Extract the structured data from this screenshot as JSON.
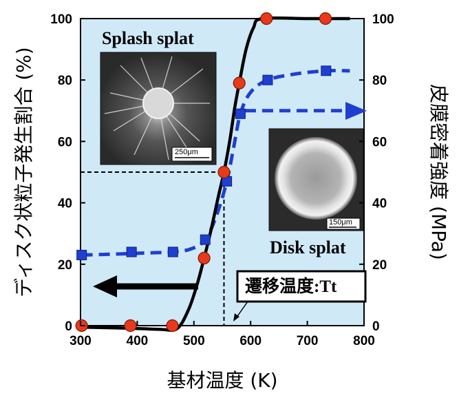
{
  "chart_data": {
    "type": "line",
    "xlabel": "基材温度 (K)",
    "ylabel_left": "ディスク状粒子発生割合 (%)",
    "ylabel_right": "皮膜密着強度 (MPa)",
    "xlim": [
      300,
      800
    ],
    "ylim_left": [
      0,
      100
    ],
    "ylim_right": [
      0,
      100
    ],
    "x_ticks": [
      "300",
      "400",
      "500",
      "600",
      "700",
      "800"
    ],
    "y_ticks_left": [
      "0",
      "20",
      "40",
      "60",
      "80",
      "100"
    ],
    "y_ticks_right": [
      "0",
      "20",
      "40",
      "60",
      "80",
      "100"
    ],
    "background": "#cfe9f7",
    "series": [
      {
        "axis": "left",
        "color": "#000000",
        "marker": "circle",
        "marker_color": "#e8391b",
        "points": [
          [
            302,
            0
          ],
          [
            388,
            0
          ],
          [
            462,
            0
          ],
          [
            518,
            22
          ],
          [
            553,
            50
          ],
          [
            580,
            79
          ],
          [
            628,
            100
          ],
          [
            732,
            100
          ]
        ],
        "curve": [
          [
            302,
            -0.5
          ],
          [
            380,
            -0.8
          ],
          [
            440,
            -1.2
          ],
          [
            470,
            -1.0
          ],
          [
            490,
            5
          ],
          [
            505,
            13
          ],
          [
            518,
            22
          ],
          [
            530,
            31
          ],
          [
            543,
            42
          ],
          [
            553,
            50
          ],
          [
            563,
            60
          ],
          [
            572,
            71
          ],
          [
            580,
            79
          ],
          [
            592,
            90
          ],
          [
            605,
            97
          ],
          [
            620,
            100
          ],
          [
            700,
            100
          ],
          [
            775,
            100
          ]
        ]
      },
      {
        "axis": "right",
        "color": "#1f3fd1",
        "marker": "square",
        "marker_color": "#1f3fd1",
        "points": [
          [
            302,
            23
          ],
          [
            390,
            24
          ],
          [
            463,
            24
          ],
          [
            520,
            28
          ],
          [
            558,
            47
          ],
          [
            582,
            69
          ],
          [
            630,
            80
          ],
          [
            733,
            83
          ]
        ],
        "curve": [
          [
            302,
            23
          ],
          [
            360,
            23.3
          ],
          [
            420,
            23.7
          ],
          [
            463,
            24
          ],
          [
            495,
            25
          ],
          [
            520,
            28
          ],
          [
            540,
            36
          ],
          [
            558,
            47
          ],
          [
            570,
            58
          ],
          [
            582,
            69
          ],
          [
            600,
            76
          ],
          [
            630,
            80
          ],
          [
            680,
            82
          ],
          [
            733,
            83
          ],
          [
            775,
            83
          ]
        ]
      }
    ],
    "annotations": {
      "inset_top_title": "Splash splat",
      "inset_top_scale": "250μm",
      "inset_bottom_title": "Disk splat",
      "inset_bottom_scale": "150μm",
      "transition_label": "遷移温度:Tt",
      "transition_x": 553,
      "transition_y": 50
    }
  }
}
